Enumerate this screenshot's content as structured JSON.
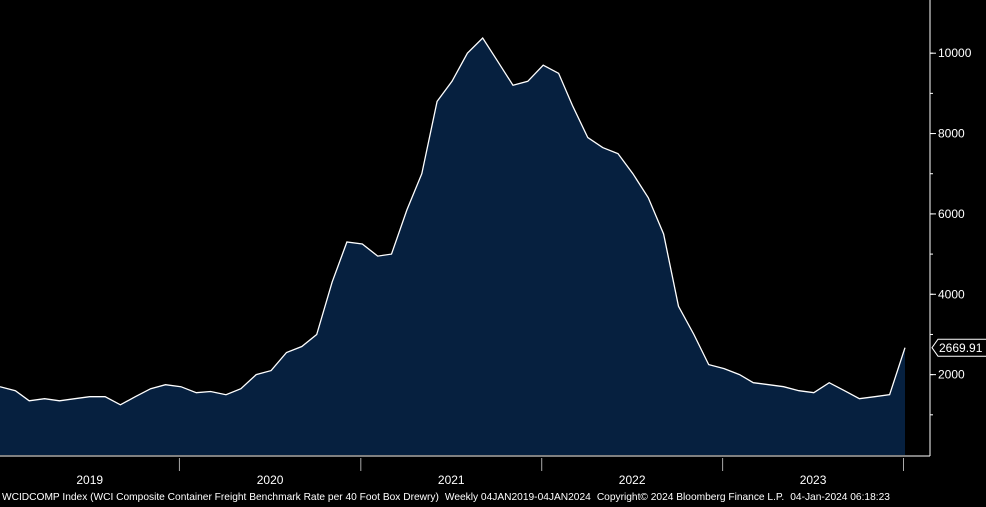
{
  "chart_data": {
    "type": "area",
    "series": [
      {
        "values": [
          {
            "x": "2019-01",
            "y": 1700
          },
          {
            "x": "2019-02",
            "y": 1600
          },
          {
            "x": "2019-03",
            "y": 1350
          },
          {
            "x": "2019-04",
            "y": 1400
          },
          {
            "x": "2019-05",
            "y": 1350
          },
          {
            "x": "2019-06",
            "y": 1400
          },
          {
            "x": "2019-07",
            "y": 1450
          },
          {
            "x": "2019-08",
            "y": 1450
          },
          {
            "x": "2019-09",
            "y": 1250
          },
          {
            "x": "2019-10",
            "y": 1450
          },
          {
            "x": "2019-11",
            "y": 1650
          },
          {
            "x": "2019-12",
            "y": 1750
          },
          {
            "x": "2020-01",
            "y": 1700
          },
          {
            "x": "2020-02",
            "y": 1550
          },
          {
            "x": "2020-03",
            "y": 1580
          },
          {
            "x": "2020-04",
            "y": 1500
          },
          {
            "x": "2020-05",
            "y": 1650
          },
          {
            "x": "2020-06",
            "y": 2000
          },
          {
            "x": "2020-07",
            "y": 2100
          },
          {
            "x": "2020-08",
            "y": 2550
          },
          {
            "x": "2020-09",
            "y": 2700
          },
          {
            "x": "2020-10",
            "y": 3000
          },
          {
            "x": "2020-11",
            "y": 4300
          },
          {
            "x": "2020-12",
            "y": 5300
          },
          {
            "x": "2021-01",
            "y": 5250
          },
          {
            "x": "2021-02",
            "y": 4950
          },
          {
            "x": "2021-03",
            "y": 5000
          },
          {
            "x": "2021-04",
            "y": 6100
          },
          {
            "x": "2021-05",
            "y": 7000
          },
          {
            "x": "2021-06",
            "y": 8800
          },
          {
            "x": "2021-07",
            "y": 9300
          },
          {
            "x": "2021-08",
            "y": 10000
          },
          {
            "x": "2021-09",
            "y": 10377
          },
          {
            "x": "2021-10",
            "y": 9800
          },
          {
            "x": "2021-11",
            "y": 9200
          },
          {
            "x": "2021-12",
            "y": 9300
          },
          {
            "x": "2022-01",
            "y": 9700
          },
          {
            "x": "2022-02",
            "y": 9500
          },
          {
            "x": "2022-03",
            "y": 8700
          },
          {
            "x": "2022-04",
            "y": 7900
          },
          {
            "x": "2022-05",
            "y": 7650
          },
          {
            "x": "2022-06",
            "y": 7500
          },
          {
            "x": "2022-07",
            "y": 7000
          },
          {
            "x": "2022-08",
            "y": 6400
          },
          {
            "x": "2022-09",
            "y": 5500
          },
          {
            "x": "2022-10",
            "y": 3700
          },
          {
            "x": "2022-11",
            "y": 3000
          },
          {
            "x": "2022-12",
            "y": 2250
          },
          {
            "x": "2023-01",
            "y": 2150
          },
          {
            "x": "2023-02",
            "y": 2000
          },
          {
            "x": "2023-03",
            "y": 1800
          },
          {
            "x": "2023-04",
            "y": 1750
          },
          {
            "x": "2023-05",
            "y": 1700
          },
          {
            "x": "2023-06",
            "y": 1600
          },
          {
            "x": "2023-07",
            "y": 1550
          },
          {
            "x": "2023-08",
            "y": 1800
          },
          {
            "x": "2023-09",
            "y": 1600
          },
          {
            "x": "2023-10",
            "y": 1400
          },
          {
            "x": "2023-11",
            "y": 1450
          },
          {
            "x": "2023-12",
            "y": 1500
          },
          {
            "x": "2024-01",
            "y": 2669.91
          }
        ]
      }
    ],
    "last_value_label": "2669.91",
    "title": "",
    "xlabel": "",
    "ylabel": "",
    "x_ticks": [
      "2019",
      "2020",
      "2021",
      "2022",
      "2023"
    ],
    "y_ticks": [
      "2000",
      "4000",
      "6000",
      "8000",
      "10000"
    ],
    "ylim": [
      0,
      11000
    ],
    "xlim": [
      "2019-01-04",
      "2024-01-04"
    ],
    "grid": false,
    "legend": "none",
    "colors": {
      "background": "#000000",
      "area_fill": "#06203f",
      "line": "#ffffff",
      "axis": "#ffffff"
    }
  },
  "footer": {
    "index": "WCIDCOMP Index (WCI Composite Container Freight Benchmark Rate per 40 Foot Box Drewry)",
    "range": "Weekly 04JAN2019-04JAN2024",
    "copyright": "Copyright© 2024 Bloomberg Finance L.P.",
    "timestamp": "04-Jan-2024 06:18:23"
  }
}
